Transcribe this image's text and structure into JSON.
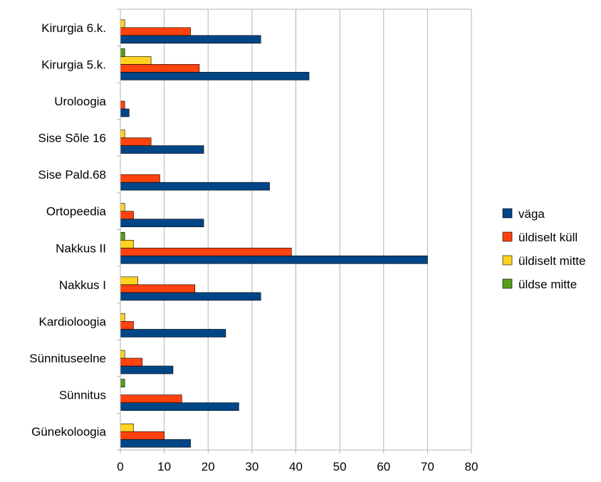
{
  "chart_data": {
    "type": "bar",
    "orientation": "horizontal",
    "categories": [
      "Kirurgia 6.k.",
      "Kirurgia 5.k.",
      "Uroloogia",
      "Sise Sõle 16",
      "Sise Pald.68",
      "Ortopeedia",
      "Nakkus II",
      "Nakkus I",
      "Kardioloogia",
      "Sünnituseelne",
      "Sünnitus",
      "Günekoloogia"
    ],
    "series": [
      {
        "name": "väga",
        "color": "#004586",
        "values": [
          32,
          43,
          2,
          19,
          34,
          19,
          70,
          32,
          24,
          12,
          27,
          16
        ]
      },
      {
        "name": "üldiselt küll",
        "color": "#ff420e",
        "values": [
          16,
          18,
          1,
          7,
          9,
          3,
          39,
          17,
          3,
          5,
          14,
          10
        ]
      },
      {
        "name": "üldiselt mitte",
        "color": "#ffd320",
        "values": [
          1,
          7,
          0,
          1,
          0,
          1,
          3,
          4,
          1,
          1,
          0,
          3
        ]
      },
      {
        "name": "üldse mitte",
        "color": "#579d1c",
        "values": [
          0,
          1,
          0,
          0,
          0,
          0,
          1,
          0,
          0,
          0,
          1,
          0
        ]
      }
    ],
    "xlim": [
      0,
      80
    ],
    "xticks": [
      0,
      10,
      20,
      30,
      40,
      50,
      60,
      70,
      80
    ],
    "grid": "vertical",
    "legend_position": "right"
  }
}
